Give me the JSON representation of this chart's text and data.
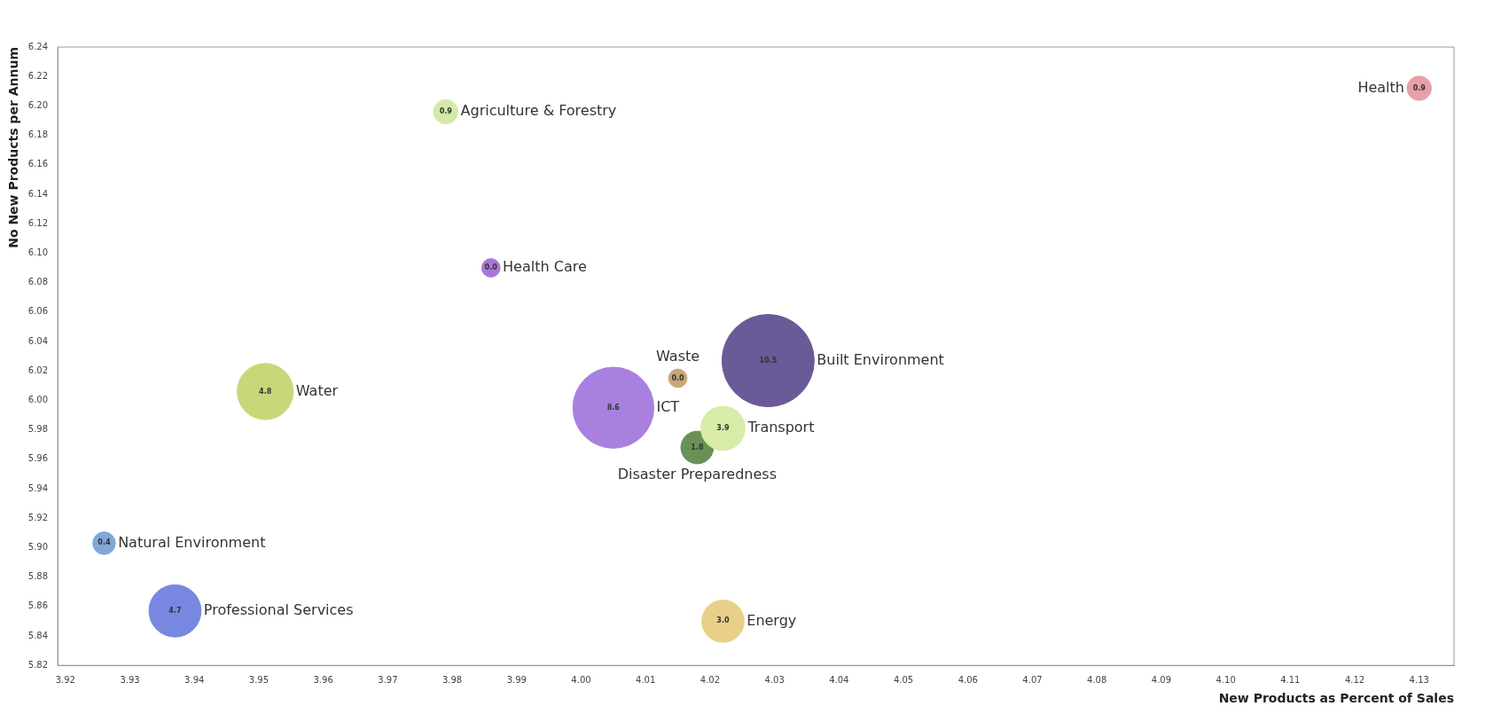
{
  "chart_data": {
    "type": "bubble",
    "xlabel": "New Products as Percent of Sales",
    "ylabel": "No New Products per Annum",
    "xlim": [
      3.9188,
      4.1354
    ],
    "ylim": [
      5.82,
      6.24
    ],
    "xticks": [
      3.92,
      3.93,
      3.94,
      3.95,
      3.96,
      3.97,
      3.98,
      3.99,
      {
        "value": 4,
        "label": "4.00"
      },
      4.01,
      4.02,
      4.03,
      4.04,
      4.05,
      4.06,
      4.07,
      4.08,
      4.09,
      {
        "value": 4.1,
        "label": "4.10"
      },
      4.11,
      4.12,
      4.13
    ],
    "yticks": [
      5.82,
      5.84,
      5.86,
      5.88,
      {
        "value": 5.9,
        "label": "5.90"
      },
      5.92,
      5.94,
      5.96,
      5.98,
      {
        "value": 6,
        "label": "6.00"
      },
      6.02,
      6.04,
      6.06,
      6.08,
      {
        "value": 6.1,
        "label": "6.10"
      },
      6.12,
      6.14,
      6.16,
      6.18,
      {
        "value": 6.2,
        "label": "6.20"
      },
      6.22,
      6.24
    ],
    "grid": false,
    "legend": false,
    "series": [
      {
        "name": "Health",
        "color": "#e8a0a8",
        "x": [
          4.13
        ],
        "values": [
          6.212
        ],
        "sizes": [
          0.07
        ]
      },
      {
        "name": "Agriculture & Forestry",
        "color": "#d4eaa8",
        "x": [
          3.979
        ],
        "values": [
          6.196
        ],
        "sizes": [
          0.07
        ]
      },
      {
        "name": "Health Care",
        "color": "#a878d8",
        "x": [
          3.986
        ],
        "values": [
          6.09
        ],
        "sizes": [
          0.04
        ]
      },
      {
        "name": "Waste",
        "color": "#c8a878",
        "x": [
          4.015
        ],
        "values": [
          6.015
        ],
        "sizes": [
          0.04
        ]
      },
      {
        "name": "Built Environment",
        "color": "#6a5a98",
        "x": [
          4.029
        ],
        "values": [
          6.027
        ],
        "sizes": [
          1
        ]
      },
      {
        "name": "ICT",
        "color": "#a880e0",
        "x": [
          4.005
        ],
        "values": [
          5.995
        ],
        "sizes": [
          0.77
        ]
      },
      {
        "name": "Transport",
        "color": "#d8eca8",
        "x": [
          4.022
        ],
        "values": [
          5.981
        ],
        "sizes": [
          0.23
        ]
      },
      {
        "name": "Disaster Preparedness",
        "color": "#6a9058",
        "x": [
          4.018
        ],
        "values": [
          5.968
        ],
        "sizes": [
          0.125
        ]
      },
      {
        "name": "Water",
        "color": "#c8d878",
        "x": [
          3.951
        ],
        "values": [
          6.006
        ],
        "sizes": [
          0.37
        ]
      },
      {
        "name": "Natural Environment",
        "color": "#80a8d8",
        "x": [
          3.926
        ],
        "values": [
          5.903
        ],
        "sizes": [
          0.06
        ]
      },
      {
        "name": "Professional Services",
        "color": "#7888e0",
        "x": [
          3.937
        ],
        "values": [
          5.857
        ],
        "sizes": [
          0.32
        ]
      },
      {
        "name": "Energy",
        "color": "#e8d088",
        "x": [
          4.022
        ],
        "values": [
          5.85
        ],
        "sizes": [
          0.21
        ]
      }
    ],
    "annotations": [
      {
        "text": "0.9",
        "x": 4.13,
        "y": 6.212
      },
      {
        "text": "0.9",
        "x": 3.979,
        "y": 6.196
      },
      {
        "text": "0.0",
        "x": 3.986,
        "y": 6.09
      },
      {
        "text": "0.0",
        "x": 4.015,
        "y": 6.015
      },
      {
        "text": "10.5",
        "x": 4.029,
        "y": 6.027
      },
      {
        "text": "8.6",
        "x": 4.005,
        "y": 5.995
      },
      {
        "text": "3.9",
        "x": 4.022,
        "y": 5.981
      },
      {
        "text": "1.8",
        "x": 4.018,
        "y": 5.968
      },
      {
        "text": "4.8",
        "x": 3.951,
        "y": 6.006
      },
      {
        "text": "0.4",
        "x": 3.926,
        "y": 5.903
      },
      {
        "text": "4.7",
        "x": 3.937,
        "y": 5.857
      },
      {
        "text": "3.0",
        "x": 4.022,
        "y": 5.85
      }
    ]
  }
}
